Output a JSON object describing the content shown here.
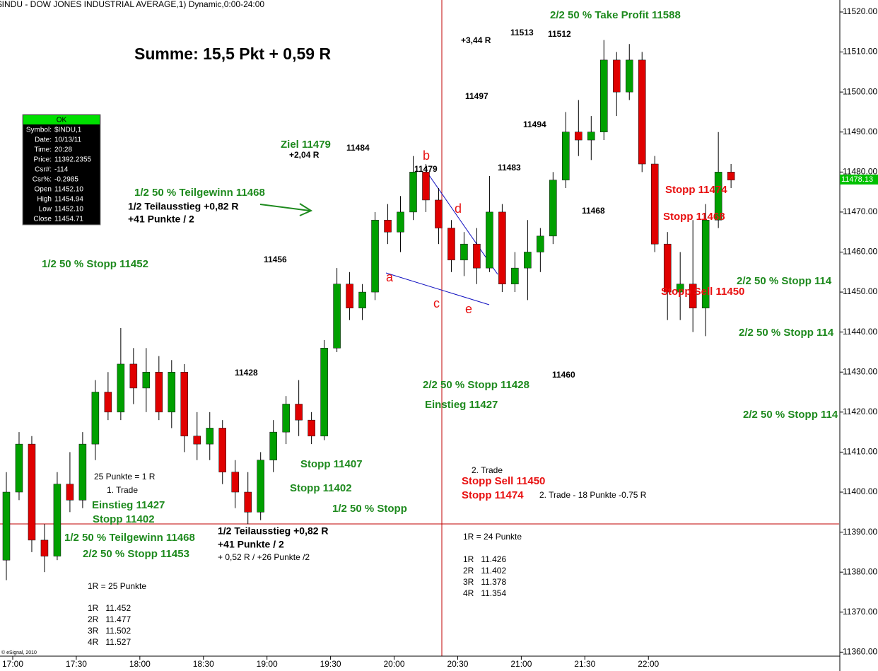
{
  "header": "$INDU - DOW JONES INDUSTRIAL AVERAGE,1) Dynamic,0:00-24:00",
  "chart_data": {
    "type": "candlestick",
    "title": "Summe: 15,5 Pkt + 0,59 R",
    "x": [
      1017,
      1023,
      1029,
      1035,
      1041,
      1047,
      1053,
      1059,
      1065,
      1071,
      1077,
      1083,
      1089,
      1095,
      1101,
      1107,
      1113,
      1119,
      1125,
      1131,
      1137,
      1143,
      1149,
      1155,
      1161,
      1167,
      1173,
      1179,
      1185,
      1191,
      1197,
      1203,
      1209,
      1215,
      1221,
      1227,
      1233,
      1239,
      1245,
      1251,
      1257,
      1263,
      1269,
      1275,
      1281,
      1287,
      1293,
      1299,
      1305,
      1311,
      1317,
      1323,
      1329,
      1335,
      1341,
      1347,
      1353,
      1359
    ],
    "open": [
      11383,
      11400,
      11412,
      11388,
      11384,
      11402,
      11398,
      11412,
      11425,
      11420,
      11432,
      11426,
      11430,
      11420,
      11430,
      11414,
      11412,
      11416,
      11405,
      11400,
      11395,
      11408,
      11415,
      11422,
      11418,
      11414,
      11436,
      11452,
      11446,
      11450,
      11468,
      11465,
      11470,
      11480,
      11473,
      11466,
      11458,
      11462,
      11456,
      11470,
      11452,
      11456,
      11460,
      11464,
      11478,
      11490,
      11488,
      11490,
      11508,
      11500,
      11508,
      11482,
      11462,
      11450,
      11452,
      11446,
      11468,
      11480
    ],
    "high": [
      11405,
      11415,
      11414,
      11392,
      11405,
      11410,
      11415,
      11428,
      11430,
      11441,
      11436,
      11436,
      11434,
      11433,
      11432,
      11420,
      11420,
      11418,
      11408,
      11405,
      11410,
      11418,
      11424,
      11428,
      11420,
      11438,
      11456,
      11455,
      11452,
      11470,
      11472,
      11474,
      11484,
      11482,
      11476,
      11468,
      11465,
      11466,
      11479,
      11472,
      11460,
      11468,
      11466,
      11480,
      11495,
      11498,
      11494,
      11513,
      11510,
      11512,
      11510,
      11484,
      11465,
      11460,
      11468,
      11472,
      11490,
      11482
    ],
    "low": [
      11378,
      11398,
      11385,
      11380,
      11383,
      11395,
      11396,
      11408,
      11418,
      11418,
      11422,
      11420,
      11418,
      11416,
      11410,
      11408,
      11408,
      11402,
      11396,
      11392,
      11393,
      11405,
      11412,
      11414,
      11412,
      11413,
      11435,
      11443,
      11443,
      11448,
      11462,
      11460,
      11468,
      11470,
      11462,
      11455,
      11454,
      11452,
      11455,
      11450,
      11450,
      11448,
      11455,
      11462,
      11476,
      11484,
      11483,
      11488,
      11494,
      11498,
      11480,
      11460,
      11443,
      11443,
      11440,
      11439,
      11466,
      11476
    ],
    "close": [
      11400,
      11412,
      11388,
      11384,
      11402,
      11398,
      11412,
      11425,
      11420,
      11432,
      11426,
      11430,
      11420,
      11430,
      11414,
      11412,
      11416,
      11405,
      11400,
      11395,
      11408,
      11415,
      11422,
      11418,
      11414,
      11436,
      11452,
      11446,
      11450,
      11468,
      11465,
      11470,
      11480,
      11473,
      11466,
      11458,
      11462,
      11456,
      11470,
      11452,
      11456,
      11460,
      11464,
      11478,
      11490,
      11488,
      11490,
      11508,
      11500,
      11508,
      11482,
      11462,
      11450,
      11452,
      11446,
      11468,
      11480,
      11478
    ],
    "up_color": "#00a000",
    "down_color": "#e00000",
    "xlim": [
      1014,
      1410
    ],
    "xticks": [
      {
        "value": 1020,
        "label": "17:00"
      },
      {
        "value": 1050,
        "label": "17:30"
      },
      {
        "value": 1080,
        "label": "18:00"
      },
      {
        "value": 1110,
        "label": "18:30"
      },
      {
        "value": 1140,
        "label": "19:00"
      },
      {
        "value": 1170,
        "label": "19:30"
      },
      {
        "value": 1200,
        "label": "20:00"
      },
      {
        "value": 1230,
        "label": "20:30"
      },
      {
        "value": 1260,
        "label": "21:00"
      },
      {
        "value": 1290,
        "label": "21:30"
      },
      {
        "value": 1320,
        "label": "22:00"
      }
    ],
    "ylim": [
      11359,
      11523
    ],
    "yticks": [
      {
        "value": 11360,
        "label": "11360.00"
      },
      {
        "value": 11370,
        "label": "11370.00"
      },
      {
        "value": 11380,
        "label": "11380.00"
      },
      {
        "value": 11390,
        "label": "11390.00"
      },
      {
        "value": 11400,
        "label": "11400.00"
      },
      {
        "value": 11410,
        "label": "11410.00"
      },
      {
        "value": 11420,
        "label": "11420.00"
      },
      {
        "value": 11430,
        "label": "11430.00"
      },
      {
        "value": 11440,
        "label": "11440.00"
      },
      {
        "value": 11450,
        "label": "11450.00"
      },
      {
        "value": 11460,
        "label": "11460.00"
      },
      {
        "value": 11470,
        "label": "11470.00"
      },
      {
        "value": 11480,
        "label": "11480.00"
      },
      {
        "value": 11490,
        "label": "11490.00"
      },
      {
        "value": 11500,
        "label": "11500.00"
      },
      {
        "value": 11510,
        "label": "11510.00"
      },
      {
        "value": 11520,
        "label": "11520.00"
      }
    ],
    "last_price": 11478.13
  },
  "info_box": {
    "status": "OK",
    "rows": [
      [
        "Symbol:",
        "$INDU,1"
      ],
      [
        "Date:",
        "10/13/11"
      ],
      [
        "Time:",
        "20:28"
      ],
      [
        "Price:",
        "11392.2355"
      ],
      [
        "Csr#:",
        "-114"
      ],
      [
        "Csr%:",
        "-0.2985"
      ],
      [
        "Open",
        "11452.10"
      ],
      [
        "High",
        "11454.94"
      ],
      [
        "Low",
        "11452.10"
      ],
      [
        "Close",
        "11454.71"
      ]
    ]
  },
  "annotations": [
    "2/2 50 % Take Profit 11588",
    "Ziel 11479",
    "+2,04 R",
    "1/2 50 % Teilgewinn 11468",
    "1/2 Teilausstieg +0,82 R",
    "+41 Punkte / 2",
    "1/2 50 % Stopp 11452",
    "11484",
    "11479",
    "+3,44 R",
    "11513",
    "11512",
    "11497",
    "11494",
    "11483",
    "11468",
    "11456",
    "11428",
    "11460",
    "Stopp 11474",
    "Stopp 11468",
    "Stopp Sell 11450",
    "2/2 50 % Stopp 114",
    "2/2 50 % Stopp 114",
    "2/2 50 % Stopp 114",
    "2/2 50 % Stopp 11428",
    "Einstieg 11427",
    "Stopp 11407",
    "Stopp 11402",
    "1/2 50 % Stopp",
    "25 Punkte = 1 R",
    "1. Trade",
    "Einstieg 11427",
    "Stopp 11402",
    "1/2 50 % Teilgewinn 11468",
    "2/2 50 % Stopp 11453",
    "1/2 Teilausstieg +0,82 R",
    "+41 Punkte / 2",
    "+ 0,52 R / +26 Punkte /2",
    "2. Trade",
    "Stopp Sell 11450",
    "Stopp 11474",
    "2. Trade - 18 Punkte -0.75 R",
    "1R = 24 Punkte",
    "1R   11.426",
    "2R   11.402",
    "3R   11.378",
    "4R   11.354",
    "1R = 25 Punkte",
    "1R   11.452",
    "2R   11.477",
    "3R   11.502",
    "4R   11.527",
    "a",
    "b",
    "c",
    "d",
    "e"
  ],
  "copyright": "© eSignal, 2010"
}
